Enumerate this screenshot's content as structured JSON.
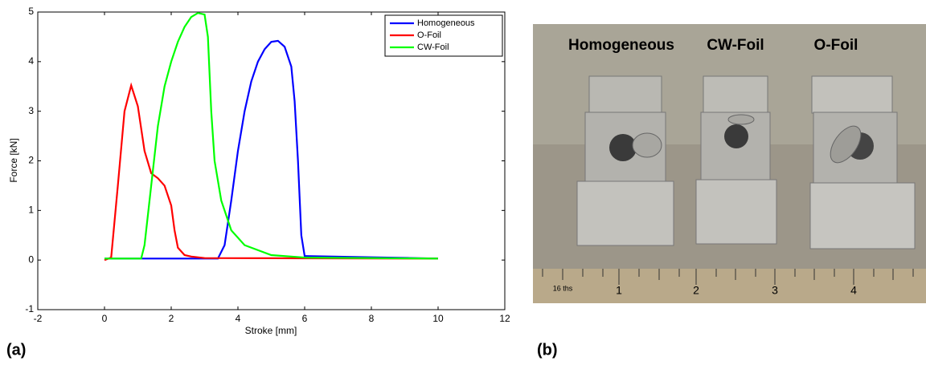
{
  "chart_data": {
    "type": "line",
    "xlabel": "Stroke [mm]",
    "ylabel": "Force [kN]",
    "xlim": [
      -2,
      12
    ],
    "xticks": [
      -2,
      0,
      2,
      4,
      6,
      8,
      10,
      12
    ],
    "ylim": [
      -1,
      5
    ],
    "yticks": [
      -1,
      0,
      1,
      2,
      3,
      4,
      5
    ],
    "legend": "upper right",
    "series": [
      {
        "name": "Homogeneous",
        "color": "#0000ff",
        "x": [
          0,
          3.4,
          3.6,
          3.8,
          4.0,
          4.2,
          4.4,
          4.6,
          4.8,
          5.0,
          5.2,
          5.4,
          5.6,
          5.7,
          5.8,
          5.9,
          6.0,
          10
        ],
        "values": [
          0.03,
          0.03,
          0.3,
          1.2,
          2.2,
          3.0,
          3.6,
          4.0,
          4.25,
          4.4,
          4.42,
          4.3,
          3.9,
          3.2,
          2.0,
          0.5,
          0.08,
          0.03
        ]
      },
      {
        "name": "O-Foil",
        "color": "#ff0000",
        "x": [
          0,
          0.2,
          0.4,
          0.6,
          0.8,
          1.0,
          1.2,
          1.4,
          1.6,
          1.8,
          2.0,
          2.1,
          2.2,
          2.4,
          2.6,
          3.0,
          10
        ],
        "values": [
          0,
          0.05,
          1.5,
          3.0,
          3.52,
          3.1,
          2.2,
          1.75,
          1.65,
          1.5,
          1.1,
          0.6,
          0.25,
          0.1,
          0.07,
          0.04,
          0.03
        ]
      },
      {
        "name": "CW-Foil",
        "color": "#00ff00",
        "x": [
          0,
          1.1,
          1.2,
          1.4,
          1.6,
          1.8,
          2.0,
          2.2,
          2.4,
          2.6,
          2.8,
          3.0,
          3.1,
          3.2,
          3.3,
          3.5,
          3.8,
          4.2,
          5.0,
          6.0,
          10
        ],
        "values": [
          0.03,
          0.03,
          0.3,
          1.5,
          2.7,
          3.5,
          4.0,
          4.4,
          4.7,
          4.9,
          4.98,
          4.95,
          4.5,
          3.0,
          2.0,
          1.2,
          0.6,
          0.3,
          0.1,
          0.05,
          0.03
        ]
      }
    ]
  },
  "panel_labels": [
    "(a)",
    "(b)"
  ],
  "photo": {
    "labels": [
      "Homogeneous",
      "CW-Foil",
      "O-Foil"
    ],
    "ruler": [
      "16 ths",
      "1",
      "2",
      "3",
      "4"
    ]
  }
}
